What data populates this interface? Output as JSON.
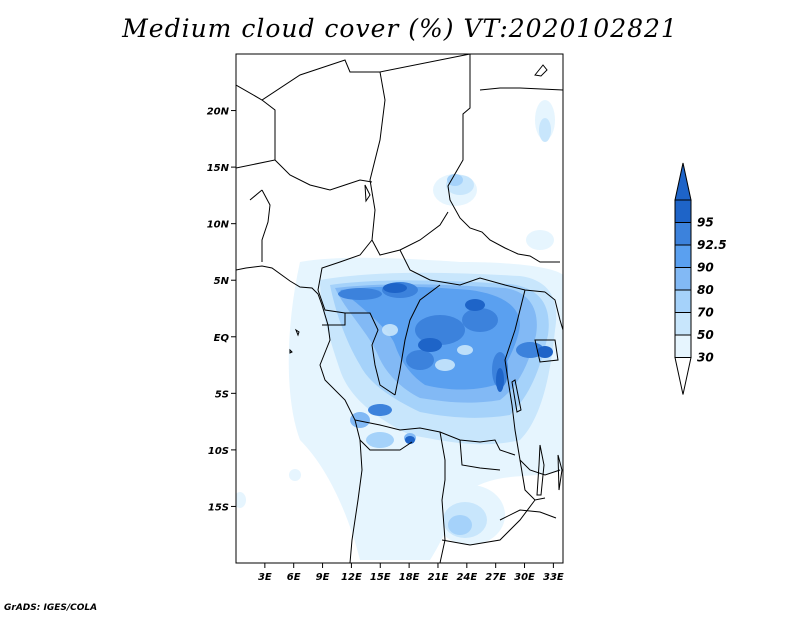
{
  "title": "Medium cloud cover (%) VT:2020102821",
  "credit": "GrADS: IGES/COLA",
  "map": {
    "lat_labels": [
      {
        "label": "20N",
        "lat": 20
      },
      {
        "label": "15N",
        "lat": 15
      },
      {
        "label": "10N",
        "lat": 10
      },
      {
        "label": "5N",
        "lat": 5
      },
      {
        "label": "EQ",
        "lat": 0
      },
      {
        "label": "5S",
        "lat": -5
      },
      {
        "label": "10S",
        "lat": -10
      },
      {
        "label": "15S",
        "lat": -15
      }
    ],
    "lon_labels": [
      {
        "label": "3E",
        "lon": 3
      },
      {
        "label": "6E",
        "lon": 6
      },
      {
        "label": "9E",
        "lon": 9
      },
      {
        "label": "12E",
        "lon": 12
      },
      {
        "label": "15E",
        "lon": 15
      },
      {
        "label": "18E",
        "lon": 18
      },
      {
        "label": "21E",
        "lon": 21
      },
      {
        "label": "24E",
        "lon": 24
      },
      {
        "label": "27E",
        "lon": 27
      },
      {
        "label": "30E",
        "lon": 30
      },
      {
        "label": "33E",
        "lon": 33
      }
    ],
    "extent": {
      "lon_min": 0,
      "lon_max": 34,
      "lat_min": -20,
      "lat_max": 25
    }
  },
  "colorbar": {
    "levels": [
      {
        "label": "95",
        "color": "#1e64c8"
      },
      {
        "label": "92.5",
        "color": "#3c82dc"
      },
      {
        "label": "90",
        "color": "#5aa0f0"
      },
      {
        "label": "80",
        "color": "#82b9f5"
      },
      {
        "label": "70",
        "color": "#a5d2fa"
      },
      {
        "label": "50",
        "color": "#c8e6fc"
      },
      {
        "label": "30",
        "color": "#e6f5fe"
      }
    ],
    "top_color": "#1e64c8",
    "bottom_color": "#ffffff"
  }
}
